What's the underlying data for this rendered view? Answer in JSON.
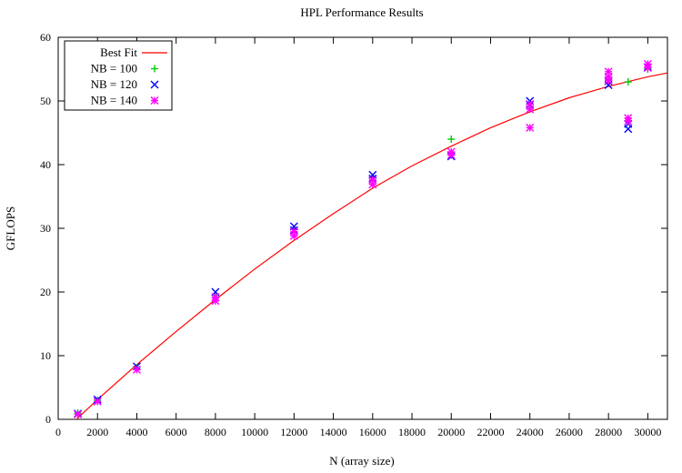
{
  "chart_data": {
    "type": "scatter",
    "title": "HPL Performance Results",
    "xlabel": "N (array size)",
    "ylabel": "GFLOPS",
    "xlim": [
      0,
      31000
    ],
    "ylim": [
      0,
      60
    ],
    "xticks": [
      0,
      2000,
      4000,
      6000,
      8000,
      10000,
      12000,
      14000,
      16000,
      18000,
      20000,
      22000,
      24000,
      26000,
      28000,
      30000
    ],
    "yticks": [
      0,
      10,
      20,
      30,
      40,
      50,
      60
    ],
    "grid": false,
    "legend_position": "top-left",
    "fit": {
      "name": "Best Fit",
      "color": "#ff0000",
      "x": [
        800,
        1000,
        2000,
        4000,
        6000,
        8000,
        10000,
        12000,
        14000,
        16000,
        18000,
        20000,
        22000,
        24000,
        26000,
        28000,
        30000,
        31000
      ],
      "y": [
        -0.5,
        0.2,
        3.1,
        8.6,
        13.8,
        18.8,
        23.6,
        28.1,
        32.3,
        36.3,
        39.8,
        42.9,
        45.8,
        48.3,
        50.5,
        52.3,
        53.8,
        54.4
      ]
    },
    "series": [
      {
        "name": "NB = 100",
        "marker": "plus",
        "color": "#00cc00",
        "x": [
          1000,
          2000,
          4000,
          8000,
          12000,
          16000,
          20000,
          20000,
          24000,
          28000,
          29000,
          30000
        ],
        "y": [
          1.0,
          3.0,
          8.1,
          19.5,
          29.9,
          37.9,
          44.0,
          41.5,
          49.5,
          53.2,
          53.0,
          55.0
        ]
      },
      {
        "name": "NB = 120",
        "marker": "x",
        "color": "#0000ff",
        "x": [
          1000,
          2000,
          4000,
          8000,
          12000,
          12000,
          16000,
          16000,
          20000,
          24000,
          24000,
          28000,
          28000,
          29000,
          29000,
          30000
        ],
        "y": [
          0.9,
          3.1,
          8.3,
          20.0,
          30.3,
          29.7,
          38.4,
          37.8,
          41.3,
          50.0,
          49.4,
          53.1,
          52.5,
          46.4,
          45.6,
          55.3
        ]
      },
      {
        "name": "NB = 140",
        "marker": "star",
        "color": "#ff00ff",
        "x": [
          1000,
          2000,
          4000,
          8000,
          8000,
          12000,
          12000,
          16000,
          16000,
          20000,
          20000,
          24000,
          24000,
          24000,
          28000,
          28000,
          28000,
          29000,
          29000,
          30000,
          30000
        ],
        "y": [
          0.8,
          2.8,
          7.8,
          19.2,
          18.6,
          29.5,
          28.8,
          37.6,
          36.9,
          42.0,
          41.5,
          49.5,
          48.7,
          45.8,
          54.6,
          53.8,
          53.2,
          47.3,
          46.8,
          55.8,
          55.2
        ]
      }
    ]
  }
}
